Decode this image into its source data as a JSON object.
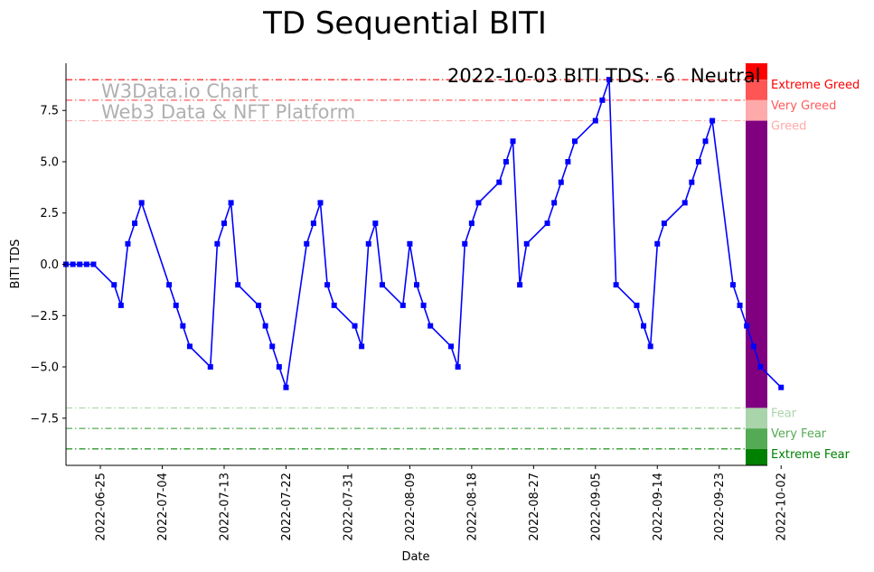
{
  "chart_data": {
    "type": "line",
    "title": "TD Sequential BITI",
    "xlabel": "Date",
    "ylabel": "BITI TDS",
    "ylim": [
      -9.8,
      9.8
    ],
    "xlim_days": [
      -5,
      97
    ],
    "x_ticks": [
      {
        "day": 0,
        "label": "2022-06-25"
      },
      {
        "day": 9,
        "label": "2022-07-04"
      },
      {
        "day": 18,
        "label": "2022-07-13"
      },
      {
        "day": 27,
        "label": "2022-07-22"
      },
      {
        "day": 36,
        "label": "2022-07-31"
      },
      {
        "day": 45,
        "label": "2022-08-09"
      },
      {
        "day": 54,
        "label": "2022-08-18"
      },
      {
        "day": 63,
        "label": "2022-08-27"
      },
      {
        "day": 72,
        "label": "2022-09-05"
      },
      {
        "day": 81,
        "label": "2022-09-14"
      },
      {
        "day": 90,
        "label": "2022-09-23"
      },
      {
        "day": 99,
        "label": "2022-10-02"
      }
    ],
    "y_ticks": [
      -7.5,
      -5.0,
      -2.5,
      0.0,
      2.5,
      5.0,
      7.5
    ],
    "y_tick_labels": [
      "−7.5",
      "−5.0",
      "−2.5",
      "0.0",
      "2.5",
      "5.0",
      "7.5"
    ],
    "series": [
      {
        "name": "BITI TDS",
        "color": "#0000ff",
        "points": [
          [
            -5,
            0
          ],
          [
            -4,
            0
          ],
          [
            -3,
            0
          ],
          [
            -2,
            0
          ],
          [
            -1,
            0
          ],
          [
            2,
            -1
          ],
          [
            3,
            -2
          ],
          [
            4,
            1
          ],
          [
            5,
            2
          ],
          [
            6,
            3
          ],
          [
            10,
            -1
          ],
          [
            11,
            -2
          ],
          [
            12,
            -3
          ],
          [
            13,
            -4
          ],
          [
            16,
            -5
          ],
          [
            17,
            1
          ],
          [
            18,
            2
          ],
          [
            19,
            3
          ],
          [
            20,
            -1
          ],
          [
            23,
            -2
          ],
          [
            24,
            -3
          ],
          [
            25,
            -4
          ],
          [
            26,
            -5
          ],
          [
            27,
            -6
          ],
          [
            30,
            1
          ],
          [
            31,
            2
          ],
          [
            32,
            3
          ],
          [
            33,
            -1
          ],
          [
            34,
            -2
          ],
          [
            37,
            -3
          ],
          [
            38,
            -4
          ],
          [
            39,
            1
          ],
          [
            40,
            2
          ],
          [
            41,
            -1
          ],
          [
            44,
            -2
          ],
          [
            45,
            1
          ],
          [
            46,
            -1
          ],
          [
            47,
            -2
          ],
          [
            48,
            -3
          ],
          [
            51,
            -4
          ],
          [
            52,
            -5
          ],
          [
            53,
            1
          ],
          [
            54,
            2
          ],
          [
            55,
            3
          ],
          [
            58,
            4
          ],
          [
            59,
            5
          ],
          [
            60,
            6
          ],
          [
            61,
            -1
          ],
          [
            62,
            1
          ],
          [
            65,
            2
          ],
          [
            66,
            3
          ],
          [
            67,
            4
          ],
          [
            68,
            5
          ],
          [
            69,
            6
          ],
          [
            72,
            7
          ],
          [
            73,
            8
          ],
          [
            74,
            9
          ],
          [
            75,
            -1
          ],
          [
            78,
            -2
          ],
          [
            79,
            -3
          ],
          [
            80,
            -4
          ],
          [
            81,
            1
          ],
          [
            82,
            2
          ],
          [
            85,
            3
          ],
          [
            86,
            4
          ],
          [
            87,
            5
          ],
          [
            88,
            6
          ],
          [
            89,
            7
          ],
          [
            92,
            -1
          ],
          [
            93,
            -2
          ],
          [
            94,
            -3
          ],
          [
            95,
            -4
          ],
          [
            96,
            -5
          ],
          [
            99,
            -6
          ]
        ]
      }
    ],
    "zones": [
      {
        "name": "Extreme Greed",
        "level": 9,
        "color": "#ff0000",
        "band": [
          9,
          9.8
        ],
        "band_color": "#ff0000"
      },
      {
        "name": "Very Greed",
        "level": 8,
        "color": "#ff5a5a",
        "band": [
          8,
          9
        ],
        "band_color": "#ff5555"
      },
      {
        "name": "Greed",
        "level": 7,
        "color": "#ffaaaa",
        "band": [
          7,
          8
        ],
        "band_color": "#ffaaaa"
      },
      {
        "name": "Neutral",
        "band": [
          -7,
          7
        ],
        "band_color": "#800080"
      },
      {
        "name": "Fear",
        "level": -7,
        "color": "#aad4aa",
        "band": [
          -8,
          -7
        ],
        "band_color": "#aad4aa"
      },
      {
        "name": "Very Fear",
        "level": -8,
        "color": "#55aa55",
        "band": [
          -9,
          -8
        ],
        "band_color": "#55aa55"
      },
      {
        "name": "Extreme Fear",
        "level": -9,
        "color": "#008000",
        "band": [
          -9.8,
          -9
        ],
        "band_color": "#008000"
      }
    ],
    "status": {
      "text": "2022-10-03 BITI TDS: -6",
      "state": "Neutral",
      "state_color": "#800080"
    },
    "watermark": [
      "W3Data.io Chart",
      "Web3 Data & NFT Platform"
    ]
  }
}
